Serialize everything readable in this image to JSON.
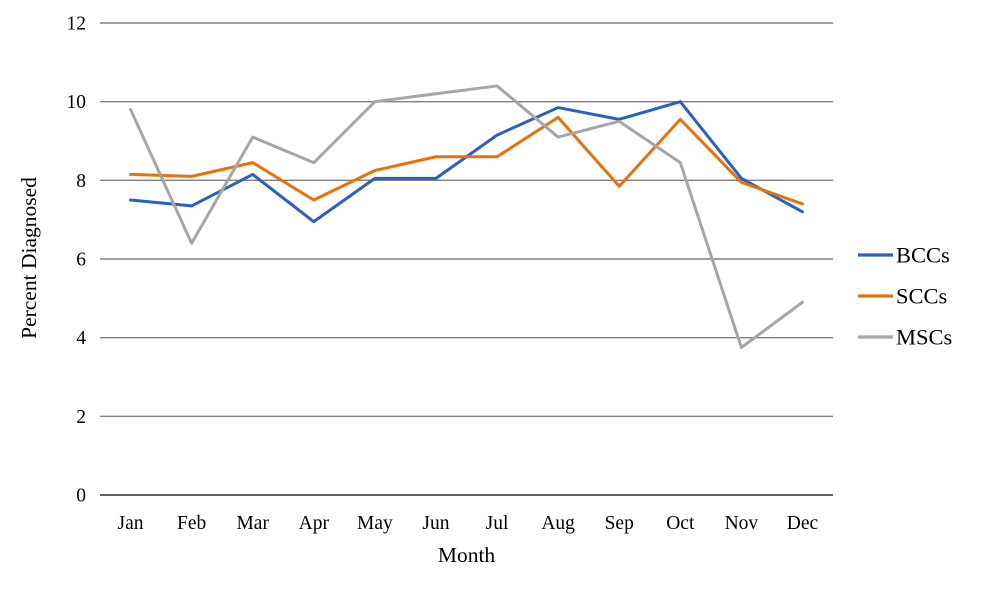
{
  "figure": {
    "kind": "line-chart-figure",
    "background": "#ffffff"
  },
  "chart_data": {
    "type": "line",
    "title": "",
    "xlabel": "Month",
    "ylabel": "Percent Diagnosed",
    "categories": [
      "Jan",
      "Feb",
      "Mar",
      "Apr",
      "May",
      "Jun",
      "Jul",
      "Aug",
      "Sep",
      "Oct",
      "Nov",
      "Dec"
    ],
    "series": [
      {
        "name": "BCCs",
        "color": "#2B5FC0",
        "values": [
          7.5,
          7.35,
          8.15,
          6.95,
          8.05,
          8.05,
          9.15,
          9.85,
          9.55,
          10.0,
          8.05,
          7.2
        ]
      },
      {
        "name": "SCCs",
        "color": "#E8710C",
        "values": [
          8.15,
          8.1,
          8.45,
          7.5,
          8.25,
          8.6,
          8.6,
          9.6,
          7.85,
          9.55,
          7.95,
          7.4
        ]
      },
      {
        "name": "MSCs",
        "color": "#A6A6A6",
        "values": [
          9.8,
          6.4,
          9.1,
          8.45,
          10.0,
          10.2,
          10.4,
          9.1,
          9.5,
          8.45,
          3.75,
          4.9
        ]
      }
    ],
    "ylim": [
      0,
      12
    ],
    "ytick_step": 2,
    "yticks": [
      0,
      2,
      4,
      6,
      8,
      10,
      12
    ],
    "grid": true,
    "legend_position": "right",
    "gridline_color": "#7F7F7F",
    "axis_line_color": "#2B2B2B",
    "text_color": "#000000"
  }
}
